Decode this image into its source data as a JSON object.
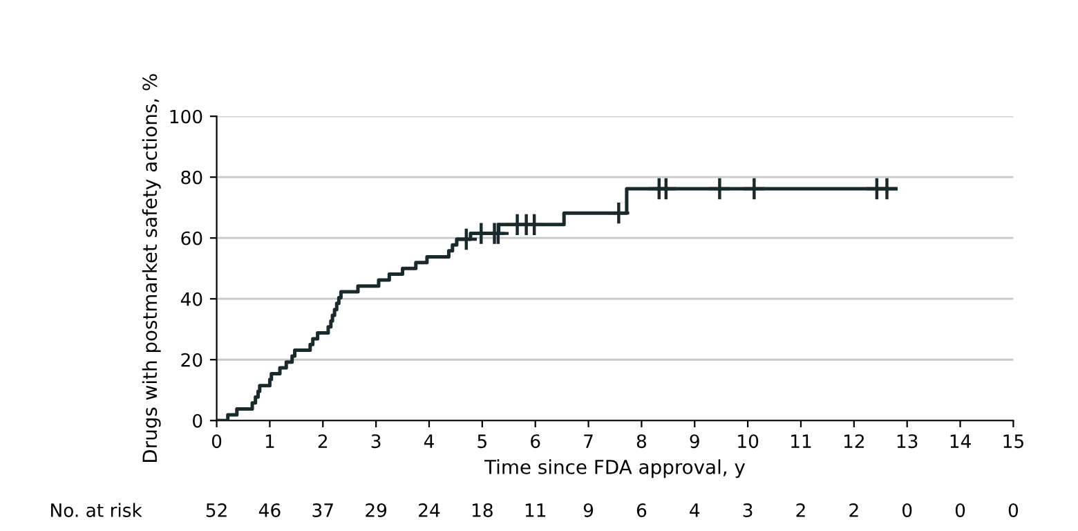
{
  "chart_data": {
    "type": "step",
    "xlabel": "Time since FDA approval, y",
    "ylabel": "Drugs with postmarket safety actions, %",
    "xlim": [
      0,
      15
    ],
    "ylim": [
      0,
      100
    ],
    "xticks": [
      0,
      1,
      2,
      3,
      4,
      5,
      6,
      7,
      8,
      9,
      10,
      11,
      12,
      13,
      14,
      15
    ],
    "yticks": [
      0,
      20,
      40,
      60,
      80,
      100
    ],
    "grid": "y",
    "series": [
      {
        "type": "step",
        "color": "#1a2a2a",
        "x": [
          0,
          0.21,
          0.38,
          0.67,
          0.73,
          0.78,
          0.81,
          1.0,
          1.03,
          1.19,
          1.31,
          1.42,
          1.47,
          1.76,
          1.81,
          1.9,
          2.1,
          2.15,
          2.18,
          2.22,
          2.26,
          2.3,
          2.34,
          2.66,
          3.05,
          3.25,
          3.5,
          3.75,
          3.96,
          4.37,
          4.44,
          4.52,
          4.78,
          5.31,
          6.54,
          7.72,
          12.79
        ],
        "values": [
          0,
          1.9,
          3.8,
          5.8,
          7.7,
          9.6,
          11.5,
          13.5,
          15.4,
          17.3,
          19.2,
          21.2,
          23.1,
          25.0,
          26.9,
          28.8,
          30.8,
          32.7,
          34.6,
          36.5,
          38.5,
          40.4,
          42.3,
          44.2,
          46.2,
          48.1,
          50.0,
          51.9,
          53.8,
          55.8,
          57.7,
          59.6,
          61.5,
          64.4,
          68.2,
          76.2,
          76.2
        ]
      },
      {
        "type": "scatter",
        "marker": "cross",
        "color": "#1a2a2a",
        "x": [
          4.7,
          4.98,
          5.23,
          5.3,
          5.66,
          5.83,
          5.98,
          7.57,
          8.33,
          8.46,
          9.47,
          10.12,
          12.43,
          12.62
        ],
        "values": [
          59.6,
          61.5,
          61.5,
          61.5,
          64.4,
          64.4,
          64.4,
          68.2,
          76.2,
          76.2,
          76.2,
          76.2,
          76.2,
          76.2
        ]
      }
    ],
    "annotations": [
      "No. at risk",
      "52",
      "46",
      "37",
      "29",
      "24",
      "18",
      "11",
      "9",
      "6",
      "4",
      "3",
      "2",
      "2",
      "0",
      "0",
      "0"
    ]
  }
}
